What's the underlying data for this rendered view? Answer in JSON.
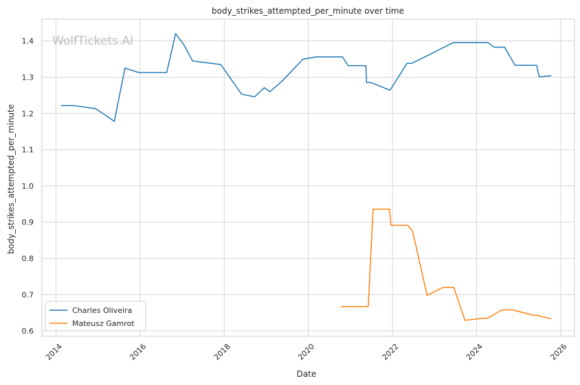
{
  "chart_data": {
    "type": "line",
    "title": "body_strikes_attempted_per_minute over time",
    "xlabel": "Date",
    "ylabel": "body_strikes_attempted_per_minute",
    "watermark": "WolfTickets.AI",
    "x_ticks": [
      "2014",
      "2016",
      "2018",
      "2020",
      "2022",
      "2024",
      "2026"
    ],
    "y_ticks": [
      "0.6",
      "0.7",
      "0.8",
      "0.9",
      "1.0",
      "1.1",
      "1.2",
      "1.3",
      "1.4"
    ],
    "xlim": [
      "2013-09-01",
      "2026-05-01"
    ],
    "ylim": [
      0.585,
      1.46
    ],
    "grid": true,
    "legend_position": "lower-left",
    "series": [
      {
        "name": "Charles Oliveira",
        "color": "#1f77b4",
        "points": [
          [
            "2014-02-15",
            1.222
          ],
          [
            "2014-06-01",
            1.222
          ],
          [
            "2014-12-13",
            1.213
          ],
          [
            "2015-05-23",
            1.178
          ],
          [
            "2015-08-23",
            1.325
          ],
          [
            "2015-12-19",
            1.313
          ],
          [
            "2016-08-20",
            1.313
          ],
          [
            "2016-11-05",
            1.42
          ],
          [
            "2017-01-15",
            1.39
          ],
          [
            "2017-04-01",
            1.345
          ],
          [
            "2017-12-02",
            1.335
          ],
          [
            "2018-06-01",
            1.253
          ],
          [
            "2018-09-22",
            1.246
          ],
          [
            "2018-12-15",
            1.271
          ],
          [
            "2019-02-02",
            1.26
          ],
          [
            "2019-05-18",
            1.289
          ],
          [
            "2019-11-16",
            1.35
          ],
          [
            "2020-03-14",
            1.356
          ],
          [
            "2020-10-24",
            1.356
          ],
          [
            "2020-12-12",
            1.332
          ],
          [
            "2021-05-15",
            1.332
          ],
          [
            "2021-05-22",
            1.285
          ],
          [
            "2021-07-01",
            1.285
          ],
          [
            "2021-12-11",
            1.264
          ],
          [
            "2022-05-07",
            1.338
          ],
          [
            "2022-06-15",
            1.338
          ],
          [
            "2022-10-22",
            1.358
          ],
          [
            "2023-06-10",
            1.395
          ],
          [
            "2024-04-13",
            1.395
          ],
          [
            "2024-06-01",
            1.383
          ],
          [
            "2024-09-01",
            1.383
          ],
          [
            "2024-12-01",
            1.333
          ],
          [
            "2025-06-07",
            1.333
          ],
          [
            "2025-06-28",
            1.301
          ],
          [
            "2025-10-11",
            1.304
          ]
        ]
      },
      {
        "name": "Mateusz Gamrot",
        "color": "#ff7f0e",
        "points": [
          [
            "2020-10-10",
            0.667
          ],
          [
            "2021-06-05",
            0.667
          ],
          [
            "2021-07-17",
            0.936
          ],
          [
            "2021-12-07",
            0.936
          ],
          [
            "2021-12-18",
            0.891
          ],
          [
            "2022-05-14",
            0.891
          ],
          [
            "2022-06-25",
            0.875
          ],
          [
            "2022-10-29",
            0.698
          ],
          [
            "2023-03-18",
            0.72
          ],
          [
            "2023-06-17",
            0.72
          ],
          [
            "2023-09-23",
            0.629
          ],
          [
            "2024-03-02",
            0.635
          ],
          [
            "2024-04-06",
            0.635
          ],
          [
            "2024-08-10",
            0.658
          ],
          [
            "2024-11-09",
            0.658
          ],
          [
            "2025-05-10",
            0.643
          ],
          [
            "2025-06-07",
            0.643
          ],
          [
            "2025-10-11",
            0.633
          ]
        ]
      }
    ]
  }
}
